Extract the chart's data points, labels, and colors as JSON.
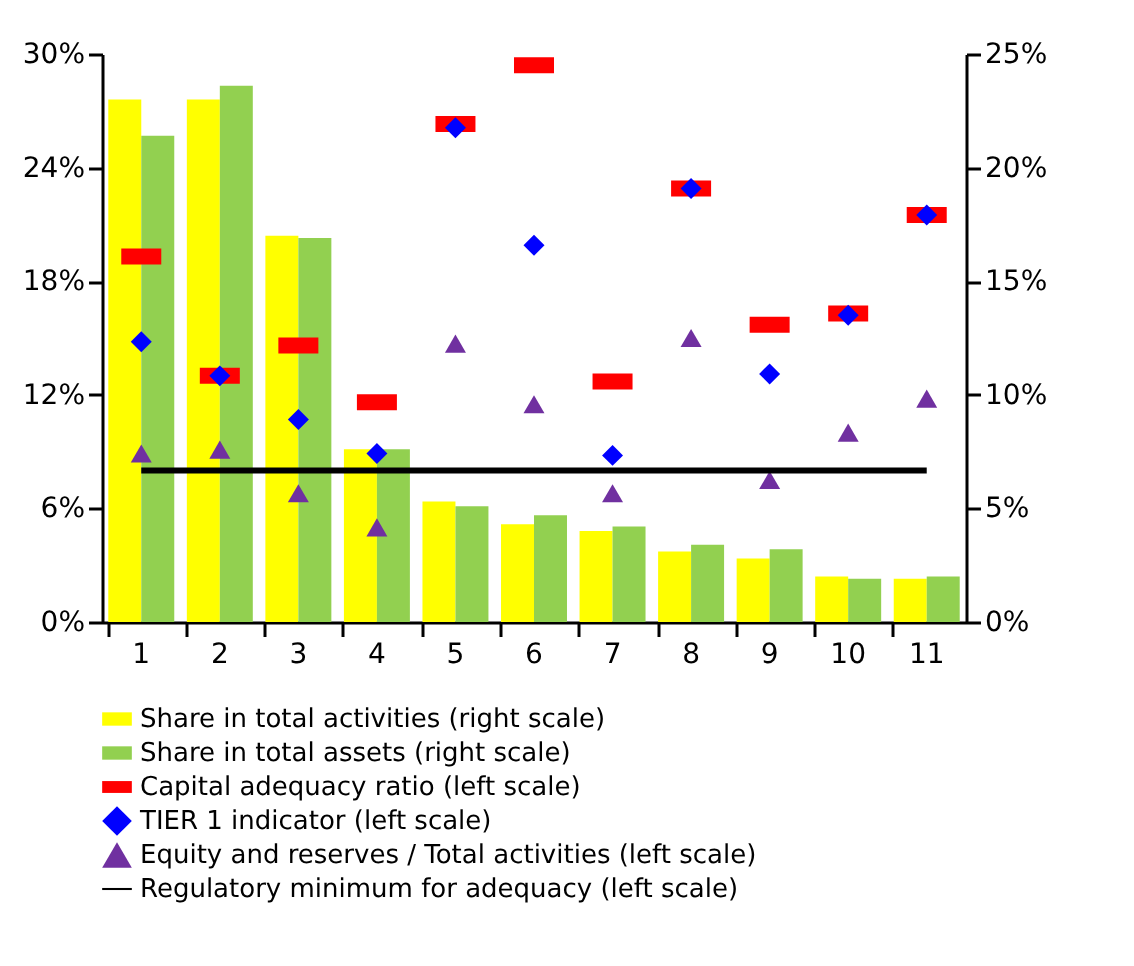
{
  "chart_data": {
    "type": "bar",
    "categories": [
      "1",
      "2",
      "3",
      "4",
      "5",
      "6",
      "7",
      "8",
      "9",
      "10",
      "11"
    ],
    "series": [
      {
        "name": "Share in total activities (right scale)",
        "axis": "y2",
        "color": "#ffff00",
        "values": [
          23.0,
          23.0,
          17.0,
          7.6,
          5.3,
          4.3,
          4.0,
          3.1,
          2.8,
          2.0,
          1.9
        ]
      },
      {
        "name": "Share in total assets (right scale)",
        "axis": "y2",
        "color": "#92d050",
        "values": [
          21.4,
          23.6,
          16.9,
          7.6,
          5.1,
          4.7,
          4.2,
          3.4,
          3.2,
          1.9,
          2.0
        ]
      },
      {
        "name": "Capital adequacy ratio (left scale)",
        "type": "scatter",
        "color": "#ff0000",
        "values": [
          19.3,
          13.0,
          14.6,
          11.6,
          26.3,
          29.4,
          12.7,
          22.9,
          15.7,
          16.3,
          21.5
        ]
      },
      {
        "name": "TIER 1 indicator (left scale)",
        "type": "scatter",
        "marker": "diamond",
        "color": "#0000ff",
        "values": [
          14.8,
          13.0,
          10.7,
          8.9,
          26.1,
          19.9,
          8.8,
          22.9,
          13.1,
          16.2,
          21.5
        ]
      },
      {
        "name": "Equity and reserves / Total activities (left scale)",
        "type": "scatter",
        "marker": "triangle",
        "color": "#7030a0",
        "values": [
          8.9,
          9.1,
          6.8,
          5.0,
          14.7,
          11.5,
          6.8,
          15.0,
          7.5,
          10.0,
          11.8
        ]
      },
      {
        "name": "Regulatory minimum for adequacy (left scale)",
        "type": "line",
        "color": "#000000",
        "values": [
          8,
          8,
          8,
          8,
          8,
          8,
          8,
          8,
          8,
          8,
          8
        ]
      }
    ],
    "ylim": [
      0,
      30
    ],
    "yticks": [
      {
        "value": 0,
        "label": "0%"
      },
      {
        "value": 6,
        "label": "6%"
      },
      {
        "value": 12,
        "label": "12%"
      },
      {
        "value": 18,
        "label": "18%"
      },
      {
        "value": 24,
        "label": "24%"
      },
      {
        "value": 30,
        "label": "30%"
      }
    ],
    "y2lim": [
      0,
      25
    ],
    "y2ticks": [
      {
        "value": 0,
        "label": "0%"
      },
      {
        "value": 5,
        "label": "5%"
      },
      {
        "value": 10,
        "label": "10%"
      },
      {
        "value": 15,
        "label": "15%"
      },
      {
        "value": 20,
        "label": "20%"
      },
      {
        "value": 25,
        "label": "25%"
      }
    ],
    "grid": false,
    "legend": "bottom"
  }
}
